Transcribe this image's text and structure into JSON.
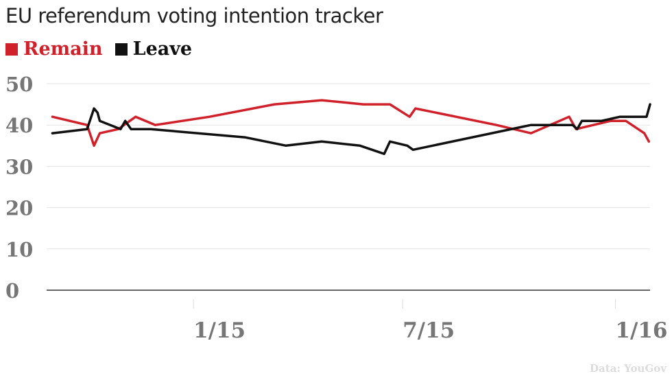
{
  "title": "EU referendum voting intention tracker",
  "source": "Data: YouGov",
  "chart_data": {
    "type": "line",
    "title": "EU referendum voting intention tracker",
    "xlabel": "",
    "ylabel": "",
    "ylim": [
      0,
      50
    ],
    "yticks": [
      0,
      10,
      20,
      30,
      40,
      50
    ],
    "xlim": [
      "2014-08-27",
      "2016-01-31"
    ],
    "xticks": [
      {
        "label": "1/15",
        "date": "2015-01-01"
      },
      {
        "label": "7/15",
        "date": "2015-07-01"
      },
      {
        "label": "1/16",
        "date": "2016-01-01"
      }
    ],
    "grid": true,
    "legend": "top-left",
    "series": [
      {
        "name": "Remain",
        "color": "#d0202a",
        "points": [
          [
            "2014-09-01",
            42
          ],
          [
            "2014-10-01",
            40
          ],
          [
            "2014-10-07",
            35
          ],
          [
            "2014-10-12",
            38
          ],
          [
            "2014-10-28",
            39
          ],
          [
            "2014-11-12",
            42
          ],
          [
            "2014-11-29",
            40
          ],
          [
            "2015-01-15",
            42
          ],
          [
            "2015-03-12",
            45
          ],
          [
            "2015-04-22",
            46
          ],
          [
            "2015-05-28",
            45
          ],
          [
            "2015-06-20",
            45
          ],
          [
            "2015-07-07",
            42
          ],
          [
            "2015-07-12",
            44
          ],
          [
            "2015-09-20",
            40
          ],
          [
            "2015-10-20",
            38
          ],
          [
            "2015-11-22",
            42
          ],
          [
            "2015-11-28",
            39
          ],
          [
            "2015-12-28",
            41
          ],
          [
            "2016-01-10",
            41
          ],
          [
            "2016-01-26",
            38
          ],
          [
            "2016-01-30",
            36
          ]
        ]
      },
      {
        "name": "Leave",
        "color": "#111111",
        "points": [
          [
            "2014-09-01",
            38
          ],
          [
            "2014-10-01",
            39
          ],
          [
            "2014-10-07",
            44
          ],
          [
            "2014-10-10",
            43
          ],
          [
            "2014-10-12",
            41
          ],
          [
            "2014-10-30",
            39
          ],
          [
            "2014-11-03",
            41
          ],
          [
            "2014-11-08",
            39
          ],
          [
            "2014-11-25",
            39
          ],
          [
            "2015-02-15",
            37
          ],
          [
            "2015-03-22",
            35
          ],
          [
            "2015-04-22",
            36
          ],
          [
            "2015-05-25",
            35
          ],
          [
            "2015-06-15",
            33
          ],
          [
            "2015-06-20",
            36
          ],
          [
            "2015-07-05",
            35
          ],
          [
            "2015-07-10",
            34
          ],
          [
            "2015-10-20",
            40
          ],
          [
            "2015-11-25",
            40
          ],
          [
            "2015-11-29",
            39
          ],
          [
            "2015-12-03",
            41
          ],
          [
            "2015-12-20",
            41
          ],
          [
            "2016-01-05",
            42
          ],
          [
            "2016-01-28",
            42
          ],
          [
            "2016-01-31",
            45
          ]
        ]
      }
    ]
  }
}
